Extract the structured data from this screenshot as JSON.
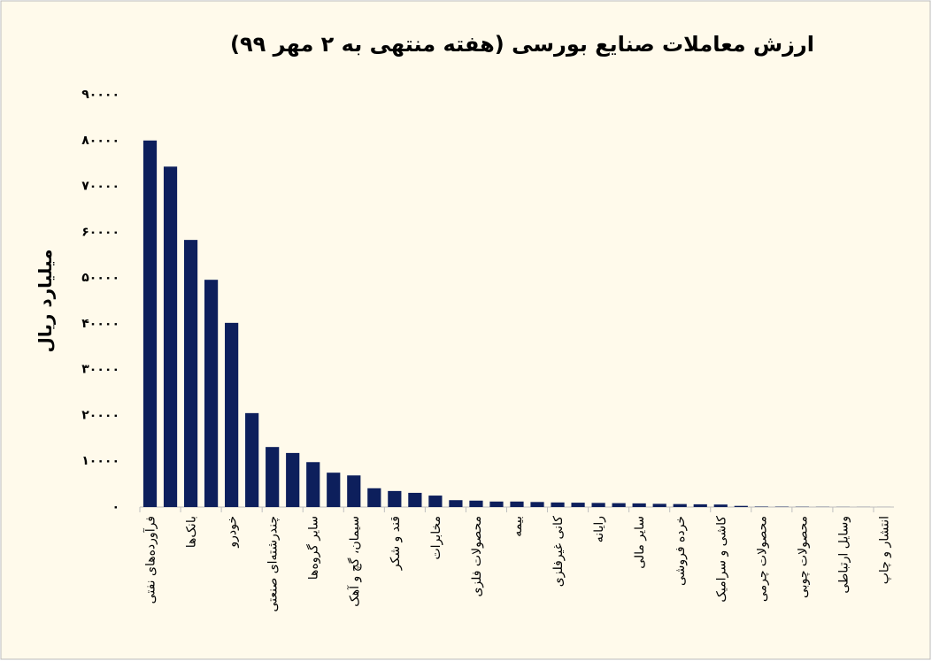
{
  "chart_data": {
    "type": "bar",
    "title": "ارزش معاملات صنایع بورسی (هفته منتهی به ۲ مهر ۹۹)",
    "y_label": "میلیارد ریال",
    "categories": [
      "فرآورده‌های نفتی",
      null,
      "بانک‌ها",
      null,
      "خودرو",
      null,
      "چندرشته‌ای صنعتی",
      null,
      "سایر گروه‌ها",
      null,
      "سیمان، گچ و آهک",
      null,
      "قند و شکر",
      null,
      "مخابرات",
      null,
      "محصولات فلزی",
      null,
      "بیمه",
      null,
      "کانی غیرفلزی",
      null,
      "رایانه",
      null,
      "سایر مالی",
      null,
      "خرده فروشی",
      null,
      "کاشی و سرامیک",
      null,
      "محصولات چرمی",
      null,
      "محصولات چوبی",
      null,
      "وسایل ارتباطی",
      null,
      "انتشار و چاپ"
    ],
    "values": [
      80000,
      74300,
      58300,
      49600,
      40200,
      20500,
      13100,
      11800,
      9800,
      7500,
      6900,
      4100,
      3500,
      3100,
      2500,
      1500,
      1400,
      1200,
      1200,
      1100,
      1000,
      950,
      900,
      850,
      800,
      700,
      650,
      600,
      550,
      250,
      100,
      80,
      60,
      40,
      30,
      20,
      10
    ],
    "color": "#0d1f5c",
    "ylim": [
      0,
      90000
    ],
    "yticks": [
      {
        "value": 0,
        "label": "۰"
      },
      {
        "value": 10000,
        "label": "۱۰۰۰۰"
      },
      {
        "value": 20000,
        "label": "۲۰۰۰۰"
      },
      {
        "value": 30000,
        "label": "۳۰۰۰۰"
      },
      {
        "value": 40000,
        "label": "۴۰۰۰۰"
      },
      {
        "value": 50000,
        "label": "۵۰۰۰۰"
      },
      {
        "value": 60000,
        "label": "۶۰۰۰۰"
      },
      {
        "value": 70000,
        "label": "۷۰۰۰۰"
      },
      {
        "value": 80000,
        "label": "۸۰۰۰۰"
      },
      {
        "value": 90000,
        "label": "۹۰۰۰۰"
      }
    ],
    "grid": false
  }
}
